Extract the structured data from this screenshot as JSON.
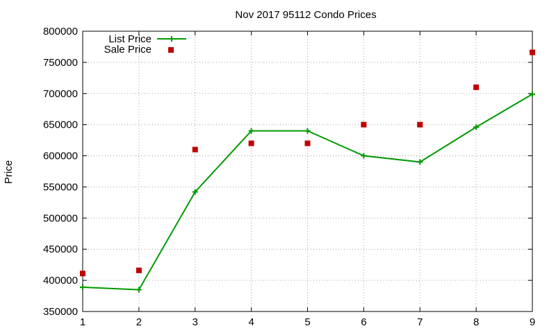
{
  "chart_data": {
    "type": "line",
    "title": "Nov 2017 95112 Condo Prices",
    "ylabel": "Price",
    "xlabel": "",
    "x": [
      1,
      2,
      3,
      4,
      5,
      6,
      7,
      8,
      9
    ],
    "xlim": [
      1,
      9
    ],
    "ylim": [
      350000,
      800000
    ],
    "yticks": [
      350000,
      400000,
      450000,
      500000,
      550000,
      600000,
      650000,
      700000,
      750000,
      800000
    ],
    "grid": true,
    "legend_position": "top-left",
    "series": [
      {
        "name": "List Price",
        "style": "linespoints",
        "marker": "plus",
        "color": "#009900",
        "values": [
          389000,
          385000,
          542000,
          640000,
          640000,
          600000,
          590000,
          646000,
          699000
        ]
      },
      {
        "name": "Sale Price",
        "style": "points",
        "marker": "square",
        "color": "#c00000",
        "values": [
          411000,
          416000,
          610000,
          620000,
          620000,
          650000,
          650000,
          710000,
          766000
        ]
      }
    ]
  }
}
